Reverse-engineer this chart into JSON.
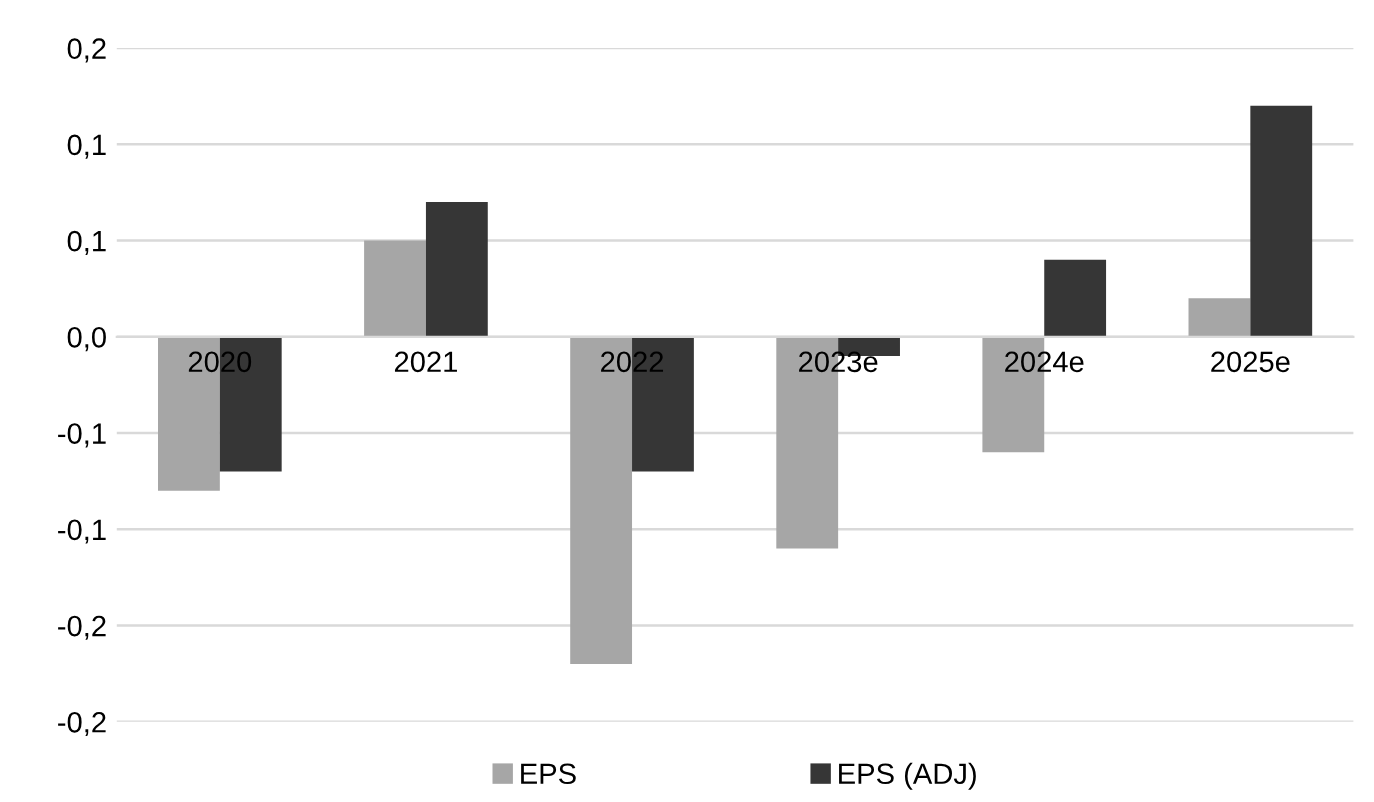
{
  "chart_data": {
    "type": "bar",
    "categories": [
      "2020",
      "2021",
      "2022",
      "2023e",
      "2024e",
      "2025e"
    ],
    "series": [
      {
        "name": "EPS",
        "color": "#a6a6a6",
        "values": [
          -0.08,
          0.05,
          -0.17,
          -0.11,
          -0.06,
          0.02
        ]
      },
      {
        "name": "EPS (ADJ)",
        "color": "#363636",
        "values": [
          -0.07,
          0.07,
          -0.07,
          -0.01,
          0.04,
          0.12
        ]
      }
    ],
    "ylim": [
      -0.2,
      0.15
    ],
    "yticks": [
      {
        "value": -0.2,
        "label": "-0,2"
      },
      {
        "value": -0.15,
        "label": "-0,2"
      },
      {
        "value": -0.1,
        "label": "-0,1"
      },
      {
        "value": -0.05,
        "label": "-0,1"
      },
      {
        "value": 0,
        "label": "0,0"
      },
      {
        "value": 0.05,
        "label": "0,1"
      },
      {
        "value": 0.1,
        "label": "0,1"
      },
      {
        "value": 0.15,
        "label": "0,2"
      }
    ],
    "grid": "y",
    "legend": "bottom"
  }
}
